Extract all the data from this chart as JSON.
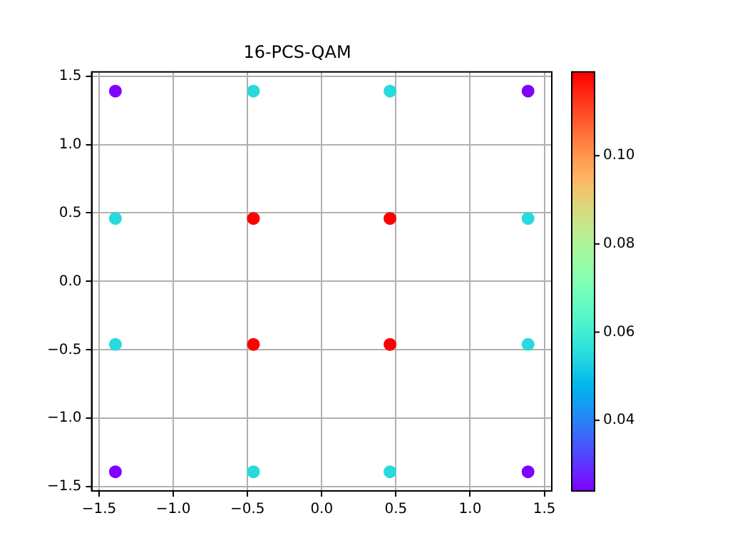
{
  "chart_data": {
    "type": "scatter",
    "title": "16-PCS-QAM",
    "x": [
      -1.39,
      -0.46,
      0.46,
      1.39,
      -1.39,
      -0.46,
      0.46,
      1.39,
      -1.39,
      -0.46,
      0.46,
      1.39,
      -1.39,
      -0.46,
      0.46,
      1.39
    ],
    "values": [
      1.39,
      1.39,
      1.39,
      1.39,
      0.46,
      0.46,
      0.46,
      0.46,
      -0.46,
      -0.46,
      -0.46,
      -0.46,
      -1.39,
      -1.39,
      -1.39,
      -1.39
    ],
    "cvalues": [
      0.024,
      0.055,
      0.055,
      0.024,
      0.055,
      0.119,
      0.119,
      0.055,
      0.055,
      0.119,
      0.119,
      0.055,
      0.024,
      0.055,
      0.055,
      0.024
    ],
    "clim": [
      0.024,
      0.119
    ],
    "cticks": [
      0.04,
      0.06,
      0.08,
      {
        "value": 0.1,
        "label": "0.10"
      }
    ],
    "xlim": [
      -1.55,
      1.55
    ],
    "xticks": [
      {
        "value": -1.5,
        "label": "−1.5"
      },
      {
        "value": -1,
        "label": "−1.0"
      },
      {
        "value": -0.5,
        "label": "−0.5"
      },
      {
        "value": 0,
        "label": "0.0"
      },
      {
        "value": 0.5,
        "label": "0.5"
      },
      {
        "value": 1,
        "label": "1.0"
      },
      {
        "value": 1.5,
        "label": "1.5"
      }
    ],
    "ylim": [
      -1.53,
      1.53
    ],
    "yticks": [
      {
        "value": -1.5,
        "label": "−1.5"
      },
      {
        "value": -1,
        "label": "−1.0"
      },
      {
        "value": -0.5,
        "label": "−0.5"
      },
      {
        "value": 0,
        "label": "0.0"
      },
      {
        "value": 0.5,
        "label": "0.5"
      },
      {
        "value": 1,
        "label": "1.0"
      },
      {
        "value": 1.5,
        "label": "1.5"
      }
    ],
    "grid": true,
    "marker": "circle",
    "legend": false
  }
}
